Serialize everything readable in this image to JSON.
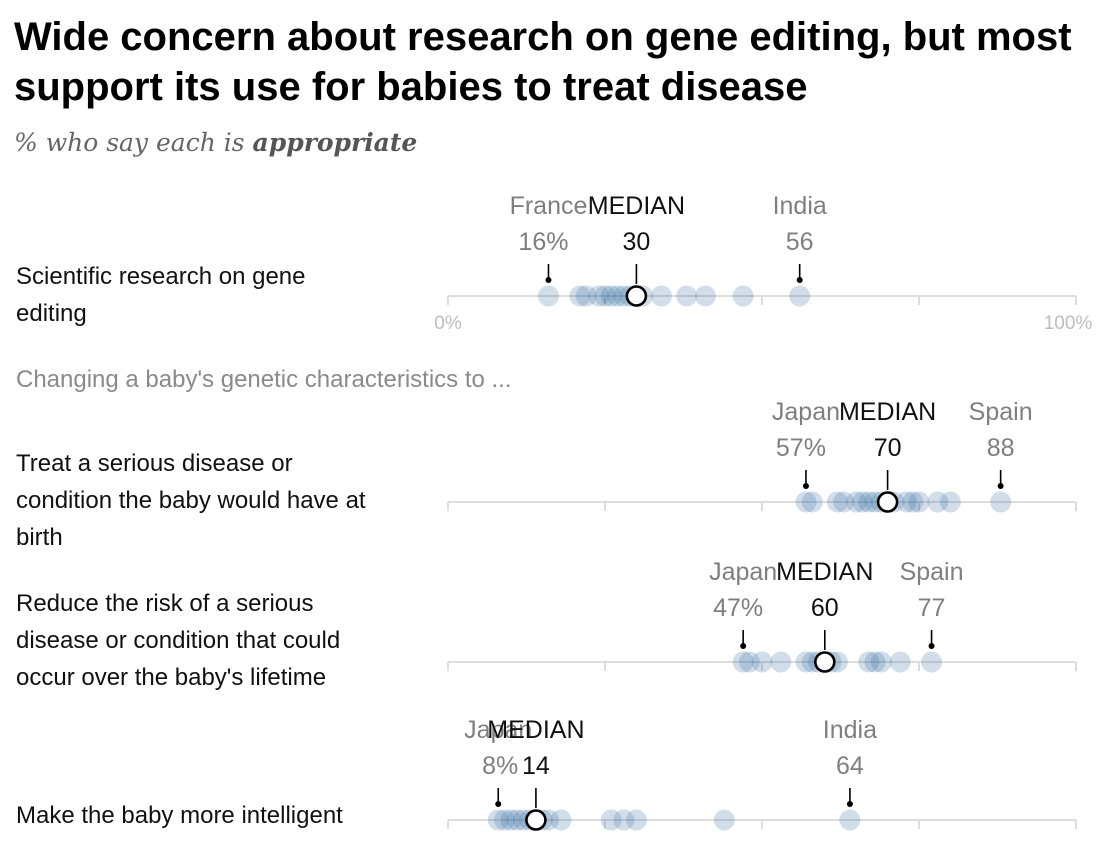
{
  "title": "Wide concern about research on gene editing, but most support its use for babies to treat disease",
  "subtitle_prefix": "% who say each is ",
  "subtitle_emphasis": "appropriate",
  "section_label": "Changing a baby's genetic characteristics to ...",
  "colors": {
    "dot": "#2f6aa0",
    "baseline": "#dddddd",
    "median_fill": "#ffffff",
    "median_stroke": "#000000"
  },
  "chart_data": {
    "type": "scatter",
    "x_range": [
      0,
      100
    ],
    "axis_labels": {
      "min": "0%",
      "max": "100%"
    },
    "median_label": "MEDIAN",
    "rows": [
      {
        "label": "Scientific research on gene editing",
        "values": [
          16,
          21,
          22,
          24,
          25,
          26,
          27,
          28,
          29,
          30,
          31,
          34,
          38,
          41,
          47,
          56
        ],
        "median": 30,
        "min": {
          "country": "France",
          "value": "16%"
        },
        "max": {
          "country": "India",
          "value": "56"
        },
        "median_text": "30"
      },
      {
        "label": "Treat a serious disease or condition the baby would have at birth",
        "values": [
          57,
          58,
          62,
          63,
          65,
          66,
          67,
          68,
          69,
          70,
          71,
          73,
          74,
          75,
          78,
          80,
          88
        ],
        "median": 70,
        "min": {
          "country": "Japan",
          "value": "57%"
        },
        "max": {
          "country": "Spain",
          "value": "88"
        },
        "median_text": "70"
      },
      {
        "label": "Reduce the risk of a serious disease or condition that could occur over the baby's lifetime",
        "values": [
          47,
          48,
          50,
          53,
          57,
          58,
          59,
          60,
          61,
          62,
          67,
          68,
          69,
          72,
          77
        ],
        "median": 60,
        "min": {
          "country": "Japan",
          "value": "47%"
        },
        "max": {
          "country": "Spain",
          "value": "77"
        },
        "median_text": "60"
      },
      {
        "label": "Make the baby more intelligent",
        "values": [
          8,
          9,
          10,
          11,
          12,
          13,
          14,
          15,
          16,
          18,
          26,
          28,
          30,
          44,
          64
        ],
        "median": 14,
        "min": {
          "country": "Japan",
          "value": "8%"
        },
        "max": {
          "country": "India",
          "value": "64"
        },
        "median_text": "14"
      }
    ]
  }
}
